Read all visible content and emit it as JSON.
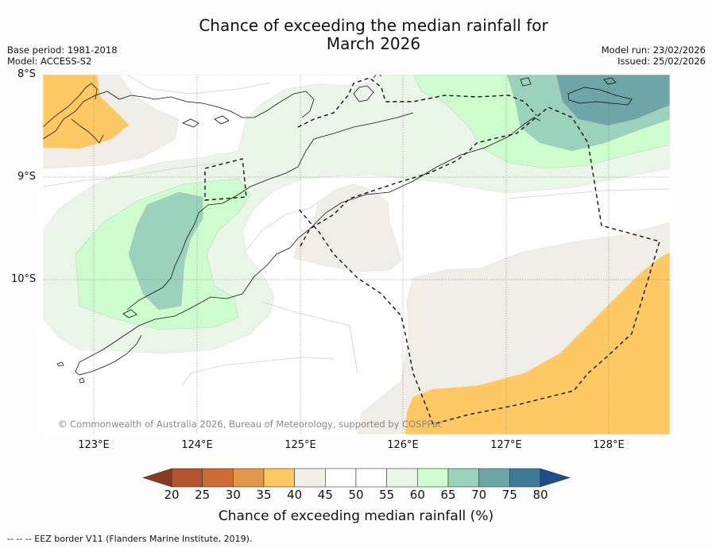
{
  "title": {
    "line1": "Chance of exceeding the median rainfall for",
    "line2": "March 2026"
  },
  "meta": {
    "base_period": "Base period: 1981-2018",
    "model": "Model: ACCESS-S2",
    "model_run": "Model run: 23/02/2026",
    "issued": "Issued: 25/02/2026"
  },
  "map": {
    "lat_labels": [
      "8°S",
      "9°S",
      "10°S"
    ],
    "lon_labels": [
      "123°E",
      "124°E",
      "125°E",
      "126°E",
      "127°E",
      "128°E"
    ],
    "copyright": "© Commonwealth of Australia 2026, Bureau of Meteorology, supported by COSPPac"
  },
  "colorbar": {
    "ticks": [
      "20",
      "25",
      "30",
      "35",
      "40",
      "45",
      "50",
      "55",
      "60",
      "65",
      "70",
      "75",
      "80"
    ],
    "colors": [
      "#b4532c",
      "#cd6b35",
      "#e39849",
      "#fec965",
      "#f1ede7",
      "#ffffff",
      "#ffffff",
      "#eaf6e8",
      "#cdfdce",
      "#9bd2be",
      "#6ea5a7",
      "#3e7a95"
    ],
    "under_color": "#8a3a22",
    "over_color": "#1e4f8a",
    "label": "Chance of exceeding median rainfall (%)"
  },
  "legend": {
    "eez": "--  --  -- EEZ border V11 (Flanders Marine Institute, 2019)."
  }
}
